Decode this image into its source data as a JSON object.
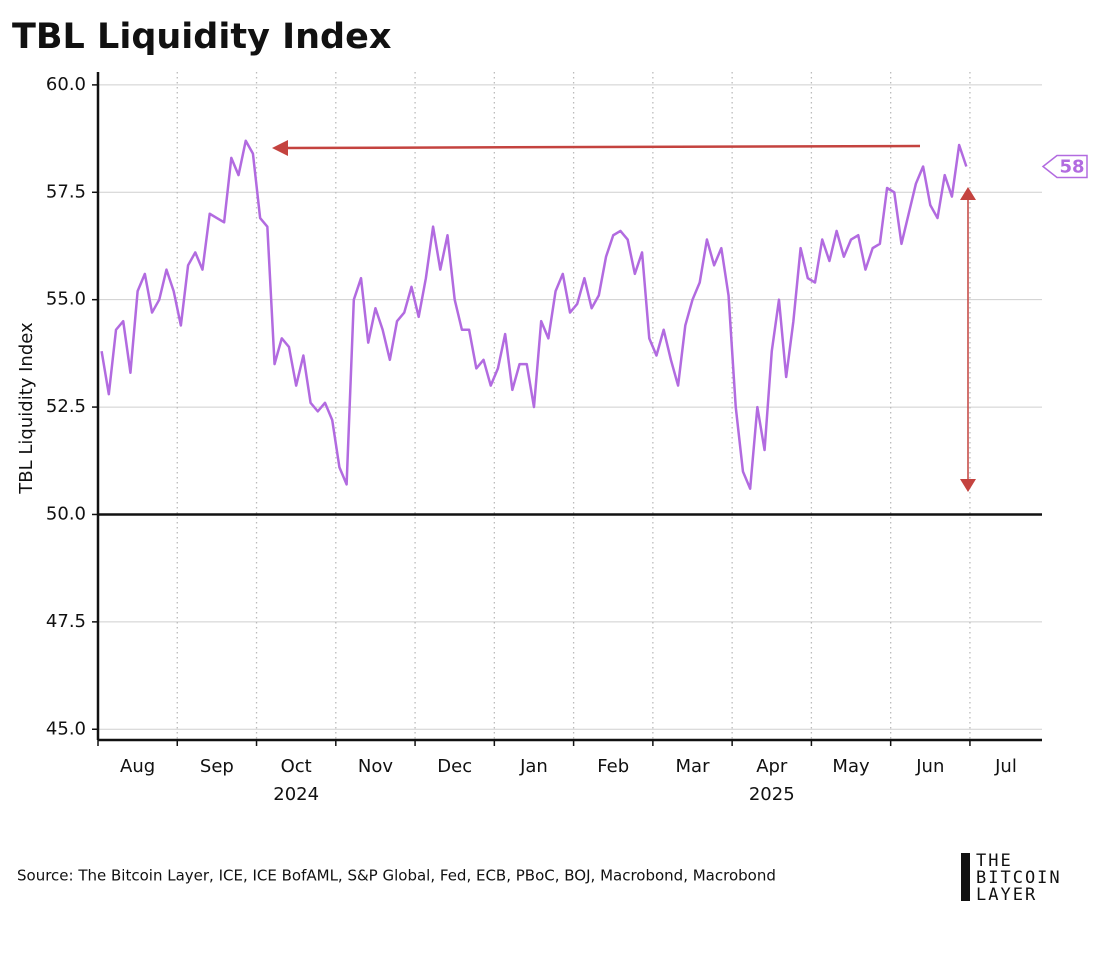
{
  "chart_data": {
    "type": "line",
    "title": "TBL Liquidity Index",
    "y_label": "TBL Liquidity Index",
    "source": "Source: The Bitcoin Layer, ICE, ICE BofAML, S&P Global, Fed, ECB, PBoC, BOJ, Macrobond, Macrobond",
    "logo": [
      "THE",
      "BITCOIN",
      "LAYER"
    ],
    "end_label": "58",
    "color": "#b26be0",
    "baseline": 50,
    "grid": true,
    "ylim": [
      44.75,
      60.3
    ],
    "yticks": [
      {
        "value": 45,
        "label": "45.0"
      },
      47.5,
      {
        "value": 50,
        "label": "50.0"
      },
      52.5,
      {
        "value": 55,
        "label": "55.0"
      },
      57.5,
      {
        "value": 60,
        "label": "60.0"
      }
    ],
    "categories": [
      "Aug",
      null,
      null,
      null,
      null,
      null,
      null,
      null,
      null,
      null,
      null,
      "Sep",
      null,
      null,
      null,
      null,
      null,
      null,
      null,
      null,
      null,
      null,
      "Oct",
      null,
      null,
      null,
      null,
      null,
      null,
      null,
      null,
      null,
      null,
      "Nov",
      null,
      null,
      null,
      null,
      null,
      null,
      null,
      null,
      null,
      null,
      "Dec",
      null,
      null,
      null,
      null,
      null,
      null,
      null,
      null,
      null,
      null,
      "Jan",
      null,
      null,
      null,
      null,
      null,
      null,
      null,
      null,
      null,
      null,
      "Feb",
      null,
      null,
      null,
      null,
      null,
      null,
      null,
      null,
      null,
      null,
      "Mar",
      null,
      null,
      null,
      null,
      null,
      null,
      null,
      null,
      null,
      null,
      "Apr",
      null,
      null,
      null,
      null,
      null,
      null,
      null,
      null,
      null,
      null,
      "May",
      null,
      null,
      null,
      null,
      null,
      null,
      null,
      null,
      null,
      null,
      "Jun",
      null,
      null,
      null,
      null,
      null,
      null,
      null,
      null,
      null,
      null,
      "Jul",
      null,
      null,
      null,
      null,
      null,
      null,
      null,
      null,
      null
    ],
    "year_labels": [
      null,
      null,
      null,
      null,
      null,
      null,
      null,
      null,
      null,
      null,
      null,
      null,
      null,
      null,
      null,
      null,
      null,
      null,
      null,
      null,
      null,
      null,
      "2024",
      null,
      null,
      null,
      null,
      null,
      null,
      null,
      null,
      null,
      null,
      null,
      null,
      null,
      null,
      null,
      null,
      null,
      null,
      null,
      null,
      null,
      null,
      null,
      null,
      null,
      null,
      null,
      null,
      null,
      null,
      null,
      null,
      null,
      null,
      null,
      null,
      null,
      null,
      null,
      null,
      null,
      null,
      null,
      null,
      null,
      null,
      null,
      null,
      null,
      null,
      null,
      null,
      null,
      null,
      null,
      null,
      null,
      null,
      null,
      null,
      null,
      null,
      null,
      null,
      null,
      "2025",
      null,
      null,
      null,
      null,
      null,
      null,
      null,
      null,
      null,
      null,
      null,
      null,
      null,
      null,
      null,
      null,
      null,
      null,
      null,
      null,
      null,
      null,
      null,
      null,
      null,
      null,
      null,
      null,
      null,
      null,
      null,
      null,
      null,
      null,
      null,
      null,
      null,
      null,
      null,
      null,
      null,
      null
    ],
    "values": [
      53.8,
      52.8,
      54.3,
      54.5,
      53.3,
      55.2,
      55.6,
      54.7,
      55.0,
      55.7,
      55.2,
      54.4,
      55.8,
      56.1,
      55.7,
      57.0,
      56.9,
      56.8,
      58.3,
      57.9,
      58.7,
      58.4,
      56.9,
      56.7,
      53.5,
      54.1,
      53.9,
      53.0,
      53.7,
      52.6,
      52.4,
      52.6,
      52.2,
      51.1,
      50.7,
      55.0,
      55.5,
      54.0,
      54.8,
      54.3,
      53.6,
      54.5,
      54.7,
      55.3,
      54.6,
      55.5,
      56.7,
      55.7,
      56.5,
      55.0,
      54.3,
      54.3,
      53.4,
      53.6,
      53.0,
      53.4,
      54.2,
      52.9,
      53.5,
      53.5,
      52.5,
      54.5,
      54.1,
      55.2,
      55.6,
      54.7,
      54.9,
      55.5,
      54.8,
      55.1,
      56.0,
      56.5,
      56.6,
      56.4,
      55.6,
      56.1,
      54.1,
      53.7,
      54.3,
      53.6,
      53.0,
      54.4,
      55.0,
      55.4,
      56.4,
      55.8,
      56.2,
      55.1,
      52.5,
      51.0,
      50.6,
      52.5,
      51.5,
      53.8,
      55.0,
      53.2,
      54.5,
      56.2,
      55.5,
      55.4,
      56.4,
      55.9,
      56.6,
      56.0,
      56.4,
      56.5,
      55.7,
      56.2,
      56.3,
      57.6,
      57.5,
      56.3,
      57.0,
      57.7,
      58.1,
      57.2,
      56.9,
      57.9,
      57.4,
      58.6,
      58.1,
      null,
      null,
      null,
      null,
      null,
      null,
      null,
      null,
      null,
      null
    ]
  }
}
